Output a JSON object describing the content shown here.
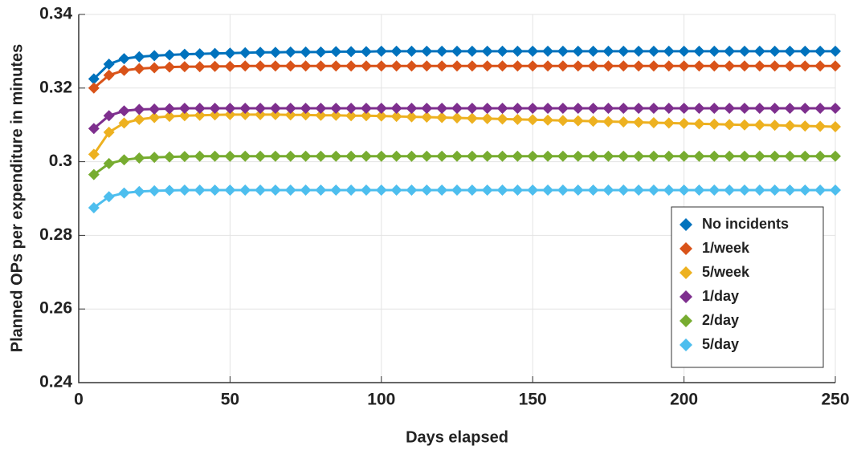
{
  "chart_data": {
    "type": "line",
    "xlabel": "Days elapsed",
    "ylabel": "Planned OPs per expenditure in minutes",
    "x": [
      5,
      10,
      15,
      20,
      25,
      30,
      35,
      40,
      45,
      50,
      55,
      60,
      65,
      70,
      75,
      80,
      85,
      90,
      95,
      100,
      105,
      110,
      115,
      120,
      125,
      130,
      135,
      140,
      145,
      150,
      155,
      160,
      165,
      170,
      175,
      180,
      185,
      190,
      195,
      200,
      205,
      210,
      215,
      220,
      225,
      230,
      235,
      240,
      245,
      250
    ],
    "series": [
      {
        "name": "No incidents",
        "color": "#0072bd",
        "values": [
          0.3225,
          0.3265,
          0.328,
          0.3285,
          0.3288,
          0.329,
          0.3292,
          0.3293,
          0.3294,
          0.3295,
          0.3296,
          0.3297,
          0.3297,
          0.3298,
          0.3298,
          0.3298,
          0.3299,
          0.3299,
          0.3299,
          0.33,
          0.33,
          0.33,
          0.33,
          0.33,
          0.33,
          0.33,
          0.33,
          0.33,
          0.33,
          0.33,
          0.33,
          0.33,
          0.33,
          0.33,
          0.33,
          0.33,
          0.33,
          0.33,
          0.33,
          0.33,
          0.33,
          0.33,
          0.33,
          0.33,
          0.33,
          0.33,
          0.33,
          0.33,
          0.33,
          0.33
        ]
      },
      {
        "name": "1/week",
        "color": "#d95319",
        "values": [
          0.32,
          0.3235,
          0.3248,
          0.3253,
          0.3255,
          0.3257,
          0.3258,
          0.3258,
          0.3259,
          0.3259,
          0.326,
          0.326,
          0.326,
          0.326,
          0.326,
          0.326,
          0.326,
          0.326,
          0.326,
          0.326,
          0.326,
          0.326,
          0.326,
          0.326,
          0.326,
          0.326,
          0.326,
          0.326,
          0.326,
          0.326,
          0.326,
          0.326,
          0.326,
          0.326,
          0.326,
          0.326,
          0.326,
          0.326,
          0.326,
          0.326,
          0.326,
          0.326,
          0.326,
          0.326,
          0.326,
          0.326,
          0.326,
          0.326,
          0.326,
          0.326
        ]
      },
      {
        "name": "5/week",
        "color": "#edb120",
        "values": [
          0.302,
          0.308,
          0.3105,
          0.3115,
          0.312,
          0.3123,
          0.3125,
          0.3126,
          0.3127,
          0.3128,
          0.3128,
          0.3128,
          0.3128,
          0.3127,
          0.3127,
          0.3126,
          0.3126,
          0.3125,
          0.3125,
          0.3124,
          0.3123,
          0.3122,
          0.3121,
          0.312,
          0.3119,
          0.3118,
          0.3117,
          0.3116,
          0.3115,
          0.3114,
          0.3113,
          0.3112,
          0.3111,
          0.311,
          0.3109,
          0.3108,
          0.3107,
          0.3106,
          0.3105,
          0.3104,
          0.3103,
          0.3102,
          0.3101,
          0.31,
          0.31,
          0.3099,
          0.3098,
          0.3097,
          0.3096,
          0.3095
        ]
      },
      {
        "name": "1/day",
        "color": "#7e2f8e",
        "values": [
          0.309,
          0.3125,
          0.3138,
          0.3142,
          0.3143,
          0.3144,
          0.3145,
          0.3145,
          0.3145,
          0.3145,
          0.3145,
          0.3145,
          0.3145,
          0.3145,
          0.3145,
          0.3145,
          0.3145,
          0.3145,
          0.3145,
          0.3145,
          0.3145,
          0.3145,
          0.3145,
          0.3145,
          0.3145,
          0.3145,
          0.3145,
          0.3145,
          0.3145,
          0.3145,
          0.3145,
          0.3145,
          0.3145,
          0.3145,
          0.3145,
          0.3145,
          0.3145,
          0.3145,
          0.3145,
          0.3145,
          0.3145,
          0.3145,
          0.3145,
          0.3145,
          0.3145,
          0.3145,
          0.3145,
          0.3145,
          0.3145,
          0.3145
        ]
      },
      {
        "name": "2/day",
        "color": "#77ac30",
        "values": [
          0.2965,
          0.2995,
          0.3005,
          0.301,
          0.3012,
          0.3013,
          0.3014,
          0.3015,
          0.3015,
          0.3015,
          0.3015,
          0.3015,
          0.3015,
          0.3015,
          0.3015,
          0.3015,
          0.3015,
          0.3015,
          0.3015,
          0.3015,
          0.3015,
          0.3015,
          0.3015,
          0.3015,
          0.3015,
          0.3015,
          0.3015,
          0.3015,
          0.3015,
          0.3015,
          0.3015,
          0.3015,
          0.3015,
          0.3015,
          0.3015,
          0.3015,
          0.3015,
          0.3015,
          0.3015,
          0.3015,
          0.3015,
          0.3015,
          0.3015,
          0.3015,
          0.3015,
          0.3015,
          0.3015,
          0.3015,
          0.3015,
          0.3015
        ]
      },
      {
        "name": "5/day",
        "color": "#4dbeee",
        "values": [
          0.2875,
          0.2905,
          0.2915,
          0.2919,
          0.2921,
          0.2922,
          0.2923,
          0.2923,
          0.2923,
          0.2923,
          0.2923,
          0.2923,
          0.2923,
          0.2923,
          0.2923,
          0.2923,
          0.2923,
          0.2923,
          0.2923,
          0.2923,
          0.2923,
          0.2923,
          0.2923,
          0.2923,
          0.2923,
          0.2923,
          0.2923,
          0.2923,
          0.2923,
          0.2923,
          0.2923,
          0.2923,
          0.2923,
          0.2923,
          0.2923,
          0.2923,
          0.2923,
          0.2923,
          0.2923,
          0.2923,
          0.2923,
          0.2923,
          0.2923,
          0.2923,
          0.2923,
          0.2923,
          0.2923,
          0.2923,
          0.2923,
          0.2923
        ]
      }
    ],
    "xlim": [
      0,
      250
    ],
    "xticks": [
      0,
      50,
      100,
      150,
      200,
      250
    ],
    "ylim": [
      0.24,
      0.34
    ],
    "yticks": [
      0.24,
      0.26,
      0.28,
      0.3,
      0.32,
      0.34
    ],
    "grid": true,
    "legend": "lower right"
  }
}
